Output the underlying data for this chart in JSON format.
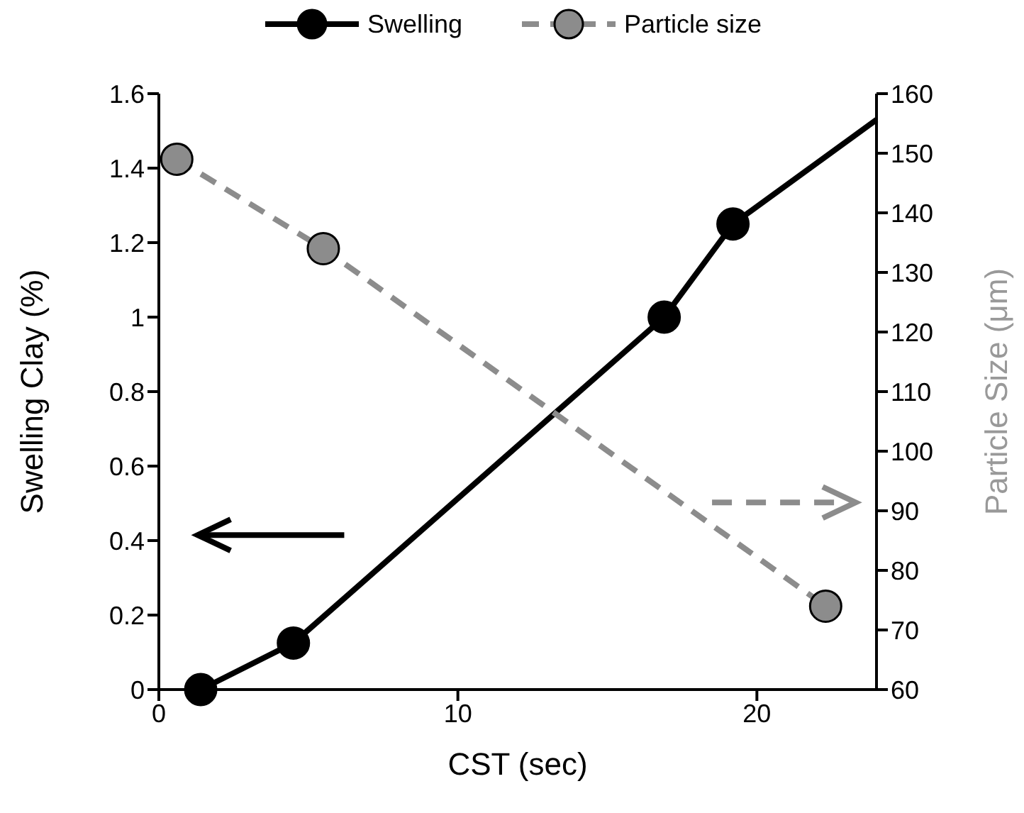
{
  "chart_data": {
    "type": "line",
    "xlabel": "CST (sec)",
    "ylabel": "Swelling Clay (%)",
    "y2label": "Particle Size (μm)",
    "xlim": [
      0,
      24
    ],
    "xticks": [
      0,
      10,
      20
    ],
    "ylim": [
      0,
      1.6
    ],
    "yticks": [
      0,
      0.2,
      0.4,
      0.6,
      0.8,
      1,
      1.2,
      1.4,
      1.6
    ],
    "y2lim": [
      60,
      160
    ],
    "y2ticks": [
      60,
      70,
      80,
      90,
      100,
      110,
      120,
      130,
      140,
      150,
      160
    ],
    "legend": "top",
    "marker": "circle",
    "grid": false,
    "series": [
      {
        "name": "Swelling",
        "color": "#000000",
        "x": [
          1.4,
          4.5,
          16.9,
          19.2
        ],
        "values": [
          0,
          0.125,
          1,
          1.25
        ]
      },
      {
        "type": "line",
        "color": "#000000",
        "marker": "none",
        "x": [
          19.2,
          24
        ],
        "values": [
          1.25,
          1.53
        ]
      },
      {
        "name": "Particle size",
        "color": "#8c8c8c",
        "axis": "y2",
        "line_style": "dashed",
        "x": [
          0.6,
          5.5,
          22.3
        ],
        "values": [
          149,
          134,
          74
        ]
      }
    ]
  }
}
